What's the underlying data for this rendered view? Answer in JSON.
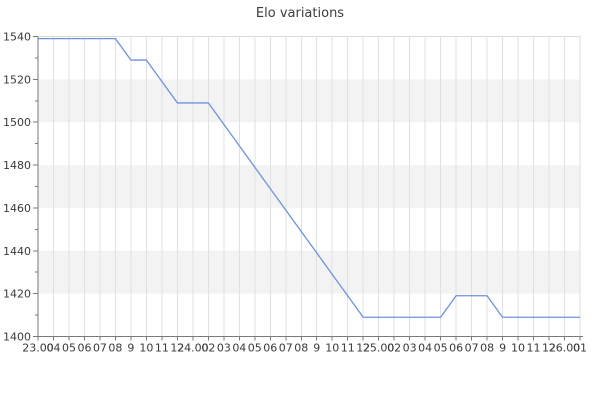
{
  "chart_data": {
    "type": "line",
    "title": "Elo variations",
    "legend": "none",
    "grid": "vertical gridlines at every x tick; alternating horizontal bands every 20 Elo",
    "ylim": [
      1400,
      1540
    ],
    "y_tick_step": 20,
    "y_minor_step": 10,
    "y_tick_labels": [
      "1540",
      "1520",
      "1500",
      "1480",
      "1460",
      "1440",
      "1420",
      "1400"
    ],
    "x_tick_labels": [
      "23.00",
      "04",
      "05",
      "06",
      "07",
      "08",
      "9",
      "10",
      "11",
      "12",
      "24.00",
      "02",
      "03",
      "04",
      "05",
      "06",
      "07",
      "08",
      "9",
      "10",
      "11",
      "12",
      "25.00",
      "02",
      "03",
      "04",
      "05",
      "06",
      "07",
      "08",
      "9",
      "10",
      "11",
      "12",
      "26.00",
      "01"
    ],
    "values": [
      1539,
      1539,
      1539,
      1539,
      1539,
      1539,
      1529,
      1529,
      1519,
      1509,
      1509,
      1509,
      1499,
      1489,
      1479,
      1469,
      1459,
      1449,
      1439,
      1429,
      1419,
      1409,
      1409,
      1409,
      1409,
      1409,
      1409,
      1419,
      1419,
      1419,
      1409,
      1409,
      1409,
      1409,
      1409,
      1409
    ],
    "colors": {
      "line": "#6e91e0",
      "band": "#f3f3f3",
      "grid": "#e0e0e0",
      "frame": "#dcdcdc",
      "axis": "#7a7a7a",
      "tick_text": "#3a3a3a",
      "title_text": "#3c3c3c"
    }
  }
}
